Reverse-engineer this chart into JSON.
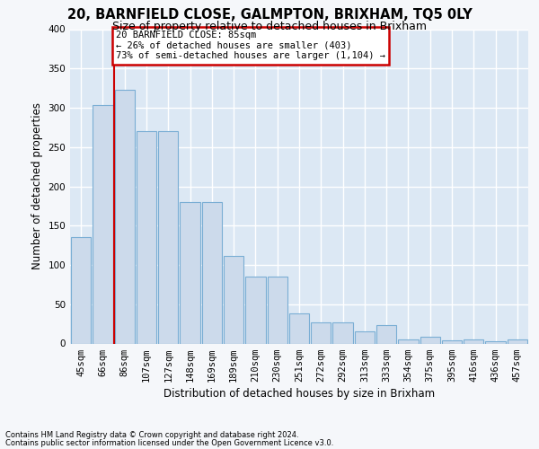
{
  "title1": "20, BARNFIELD CLOSE, GALMPTON, BRIXHAM, TQ5 0LY",
  "title2": "Size of property relative to detached houses in Brixham",
  "xlabel": "Distribution of detached houses by size in Brixham",
  "ylabel": "Number of detached properties",
  "footnote1": "Contains HM Land Registry data © Crown copyright and database right 2024.",
  "footnote2": "Contains public sector information licensed under the Open Government Licence v3.0.",
  "categories": [
    "45sqm",
    "66sqm",
    "86sqm",
    "107sqm",
    "127sqm",
    "148sqm",
    "169sqm",
    "189sqm",
    "210sqm",
    "230sqm",
    "251sqm",
    "272sqm",
    "292sqm",
    "313sqm",
    "333sqm",
    "354sqm",
    "375sqm",
    "395sqm",
    "416sqm",
    "436sqm",
    "457sqm"
  ],
  "values": [
    135,
    303,
    323,
    270,
    270,
    180,
    180,
    112,
    85,
    85,
    38,
    27,
    27,
    15,
    23,
    5,
    9,
    4,
    5,
    3,
    5
  ],
  "bar_color": "#ccdaeb",
  "bar_edge_color": "#7aaed4",
  "vline_color": "#cc0000",
  "vline_x": 1.5,
  "annotation_line1": "20 BARNFIELD CLOSE: 85sqm",
  "annotation_line2": "← 26% of detached houses are smaller (403)",
  "annotation_line3": "73% of semi-detached houses are larger (1,104) →",
  "annotation_box_facecolor": "#ffffff",
  "annotation_box_edgecolor": "#cc0000",
  "ylim": [
    0,
    400
  ],
  "yticks": [
    0,
    50,
    100,
    150,
    200,
    250,
    300,
    350,
    400
  ],
  "fig_facecolor": "#f5f7fa",
  "plot_bg_color": "#dce8f4",
  "grid_color": "#ffffff",
  "title1_fontsize": 10.5,
  "title2_fontsize": 9,
  "tick_fontsize": 7.5,
  "ylabel_fontsize": 8.5,
  "xlabel_fontsize": 8.5,
  "annot_fontsize": 7.5,
  "footnote_fontsize": 6
}
